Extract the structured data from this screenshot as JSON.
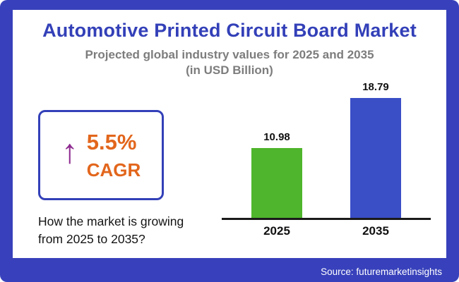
{
  "header": {
    "title": "Automotive Printed Circuit Board Market",
    "subtitle_line1": "Projected global industry values for 2025 and 2035",
    "subtitle_line2": "(in USD Billion)"
  },
  "cagr_box": {
    "arrow_icon": "up-arrow",
    "value": "5.5%",
    "label": "CAGR"
  },
  "caption": {
    "line1": "How the market is growing",
    "line2": "from 2025 to 2035?"
  },
  "footer": {
    "source": "Source: futuremarketinsights"
  },
  "colors": {
    "frame_blue": "#3841bb",
    "title_blue": "#3340b8",
    "orange": "#e2661c",
    "arrow_purple": "#8e2b90",
    "bar_green": "#4fb52c",
    "bar_blue": "#3a4ec6",
    "subtitle_gray": "#7d7d7d"
  },
  "chart_data": {
    "type": "bar",
    "title": "Automotive Printed Circuit Board Market",
    "subtitle": "Projected global industry values for 2025 and 2035 (in USD Billion)",
    "categories": [
      "2025",
      "2035"
    ],
    "values": [
      10.98,
      18.79
    ],
    "series_colors": [
      "#4fb52c",
      "#3a4ec6"
    ],
    "ylabel": "USD Billion",
    "ylim": [
      0,
      20
    ],
    "grid": false,
    "legend": "none"
  }
}
